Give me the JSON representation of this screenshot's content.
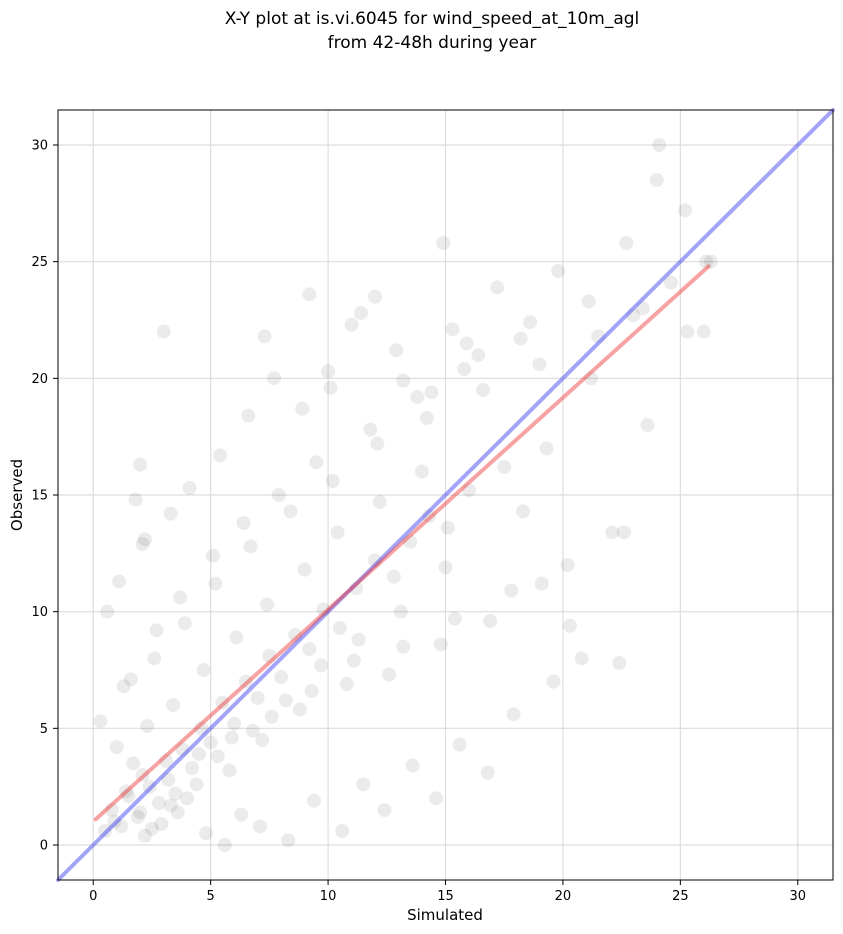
{
  "title_lines": [
    "X-Y plot at is.vi.6045 for wind_speed_at_10m_agl",
    "from 42-48h during year"
  ],
  "chart_data": {
    "type": "scatter",
    "title": "X-Y plot at is.vi.6045 for wind_speed_at_10m_agl from 42-48h during year",
    "xlabel": "Simulated",
    "ylabel": "Observed",
    "xlim": [
      -1.5,
      31.5
    ],
    "ylim": [
      -1.5,
      31.5
    ],
    "xticks": [
      0,
      5,
      10,
      15,
      20,
      25,
      30
    ],
    "yticks": [
      0,
      5,
      10,
      15,
      20,
      25,
      30
    ],
    "grid": true,
    "point_color": "#000000",
    "point_alpha": 0.08,
    "regression_line": {
      "color": "#ee3333",
      "x": [
        0.1,
        26.2
      ],
      "y": [
        1.1,
        24.8
      ]
    },
    "identity_line": {
      "color": "#3333ee",
      "x": [
        -1.5,
        31.5
      ],
      "y": [
        -1.5,
        31.5
      ]
    },
    "series": [
      {
        "x": [
          0.8,
          1.2,
          1.5,
          1.9,
          2.1,
          2.4,
          2.8,
          3.1,
          3.5,
          3.8,
          4.2,
          4.6,
          5.0,
          5.5,
          6.0,
          6.5,
          7.0,
          7.5,
          8.0,
          8.6,
          9.2,
          9.8,
          10.5,
          11.2,
          12.0,
          12.8,
          13.5,
          14.3,
          15.1,
          16.0,
          1.0,
          1.7,
          2.3,
          2.9,
          3.4,
          4.0,
          4.7,
          5.3,
          6.1,
          6.8,
          7.4,
          8.2,
          9.0,
          9.7,
          10.4,
          11.3,
          12.2,
          13.1,
          14.0,
          15.0,
          0.5,
          1.3,
          2.0,
          2.6,
          3.2,
          3.9,
          4.5,
          5.2,
          5.9,
          6.7,
          7.6,
          8.4,
          9.3,
          10.2,
          11.1,
          12.1,
          13.2,
          14.2,
          15.4,
          16.6,
          17.8,
          19.0,
          20.2,
          21.5,
          22.6,
          23.4,
          24.6,
          25.3,
          26.1,
          0.3,
          0.9,
          1.6,
          2.2,
          2.7,
          3.3,
          3.7,
          4.4,
          5.1,
          5.8,
          6.4,
          7.2,
          7.9,
          8.8,
          9.5,
          10.8,
          11.8,
          12.6,
          13.8,
          14.8,
          15.8,
          16.9,
          18.2,
          19.3,
          2.0,
          2.1,
          1.8,
          3.0,
          7.3,
          9.2,
          10.1,
          11.0,
          12.0,
          13.2,
          14.9,
          15.3,
          16.4,
          17.5,
          18.3,
          19.1,
          20.3,
          21.2,
          22.1,
          23.0,
          23.6,
          24.1,
          25.2,
          26.0,
          26.3,
          1.4,
          2.5,
          3.6,
          4.8,
          5.6,
          6.3,
          7.1,
          8.3,
          9.4,
          10.6,
          11.5,
          12.4,
          13.6,
          14.6,
          15.6,
          16.8,
          17.9,
          19.6,
          20.8,
          22.4,
          0.6,
          1.1,
          2.2,
          3.3,
          4.1,
          5.4,
          6.6,
          7.7,
          8.9,
          10.0,
          11.4,
          12.9,
          14.4,
          15.9,
          17.2,
          18.6,
          19.8,
          21.1,
          22.7,
          24.0
        ],
        "y": [
          1.5,
          0.8,
          2.1,
          1.2,
          3.0,
          2.5,
          1.8,
          3.6,
          2.2,
          4.1,
          3.3,
          5.0,
          4.4,
          6.1,
          5.2,
          7.0,
          6.3,
          8.1,
          7.2,
          9.0,
          8.4,
          10.1,
          9.3,
          11.0,
          12.2,
          11.5,
          13.0,
          14.1,
          13.6,
          15.2,
          4.2,
          3.5,
          5.1,
          0.9,
          6.0,
          2.0,
          7.5,
          3.8,
          8.9,
          4.9,
          10.3,
          6.2,
          11.8,
          7.7,
          13.4,
          8.8,
          14.7,
          10.0,
          16.0,
          11.9,
          0.6,
          6.8,
          1.4,
          8.0,
          2.8,
          9.5,
          3.9,
          11.2,
          4.6,
          12.8,
          5.5,
          14.3,
          6.6,
          15.6,
          7.9,
          17.2,
          8.5,
          18.3,
          9.7,
          19.5,
          10.9,
          20.6,
          12.0,
          21.8,
          13.4,
          23.0,
          24.1,
          22.0,
          25.0,
          5.3,
          1.0,
          7.1,
          0.4,
          9.2,
          1.7,
          10.6,
          2.6,
          12.4,
          3.2,
          13.8,
          4.5,
          15.0,
          5.8,
          16.4,
          6.9,
          17.8,
          7.3,
          19.2,
          8.6,
          20.4,
          9.6,
          21.7,
          17.0,
          16.3,
          12.9,
          14.8,
          22.0,
          21.8,
          23.6,
          19.6,
          22.3,
          23.5,
          19.9,
          25.8,
          22.1,
          21.0,
          16.2,
          14.3,
          11.2,
          9.4,
          20.0,
          13.4,
          22.7,
          18.0,
          30.0,
          27.2,
          22.0,
          25.0,
          2.3,
          0.7,
          1.4,
          0.5,
          0.0,
          1.3,
          0.8,
          0.2,
          1.9,
          0.6,
          2.6,
          1.5,
          3.4,
          2.0,
          4.3,
          3.1,
          5.6,
          7.0,
          8.0,
          7.8,
          10.0,
          11.3,
          13.1,
          14.2,
          15.3,
          16.7,
          18.4,
          20.0,
          18.7,
          20.3,
          22.8,
          21.2,
          19.4,
          21.5,
          23.9,
          22.4,
          24.6,
          23.3,
          25.8,
          28.5
        ]
      }
    ]
  }
}
